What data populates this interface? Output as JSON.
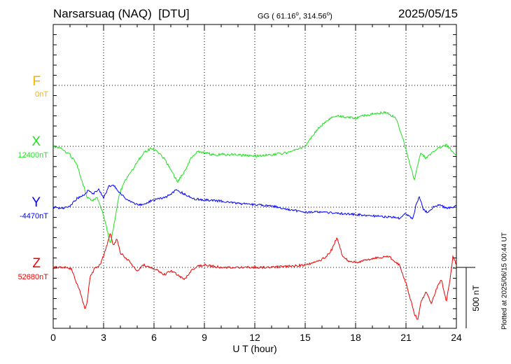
{
  "header": {
    "station": "Narsarsuaq (NAQ)",
    "source": "[DTU]",
    "coord_prefix": "GG ( 61.16",
    "coord_sep": ", 314.56",
    "coord_suffix": ")",
    "degree_mark": "o",
    "date": "2025/05/15"
  },
  "components": [
    {
      "label": "F",
      "baseline": "0nT",
      "color": "#f0b400"
    },
    {
      "label": "X",
      "baseline": "12400nT",
      "color": "#22dd22"
    },
    {
      "label": "Y",
      "baseline": "-4470nT",
      "color": "#0000ff"
    },
    {
      "label": "Z",
      "baseline": "52680nT",
      "color": "#ee0000"
    }
  ],
  "scale_label": "500 nT",
  "plotted_note": "Plotted at 2025/06/15 00:44 UT",
  "chart_data": {
    "type": "line",
    "xlabel": "U T (hour)",
    "xlim": [
      0,
      24
    ],
    "xticks": [
      "0",
      "3",
      "6",
      "9",
      "12",
      "15",
      "18",
      "21",
      "24"
    ],
    "ylabel": "",
    "scale_bar_nT": 500,
    "grid": true,
    "series": [
      {
        "name": "F",
        "x": [],
        "y": []
      },
      {
        "name": "X",
        "x": [
          0,
          0.5,
          1.0,
          1.4,
          1.8,
          2.0,
          2.3,
          2.6,
          2.9,
          3.2,
          3.4,
          3.5,
          3.7,
          3.9,
          4.2,
          4.6,
          5.0,
          5.4,
          5.8,
          6.2,
          6.6,
          7.0,
          7.4,
          7.8,
          8.2,
          8.6,
          9.0,
          9.5,
          10,
          11,
          12,
          13,
          14,
          15,
          15.6,
          16.2,
          16.8,
          17.4,
          18,
          18.6,
          19.2,
          19.8,
          20.4,
          20.8,
          21.2,
          21.5,
          21.7,
          21.9,
          22.2,
          22.6,
          23.0,
          23.4,
          23.7,
          24
        ],
        "y": [
          12400,
          12380,
          12330,
          12250,
          12080,
          11980,
          11950,
          11980,
          11880,
          11720,
          11600,
          11660,
          11820,
          11990,
          12100,
          12180,
          12270,
          12350,
          12380,
          12360,
          12300,
          12210,
          12110,
          12190,
          12300,
          12360,
          12350,
          12330,
          12335,
          12330,
          12320,
          12330,
          12350,
          12400,
          12520,
          12600,
          12650,
          12640,
          12630,
          12655,
          12670,
          12680,
          12630,
          12470,
          12270,
          12120,
          12250,
          12350,
          12300,
          12350,
          12390,
          12410,
          12370,
          12330
        ]
      },
      {
        "name": "Y",
        "x": [
          0,
          0.5,
          1.0,
          1.4,
          1.8,
          2.1,
          2.4,
          2.7,
          3.0,
          3.3,
          3.6,
          3.9,
          4.3,
          4.8,
          5.3,
          5.8,
          6.3,
          6.8,
          7.3,
          7.8,
          8.3,
          9,
          10,
          11,
          12,
          13,
          14,
          15,
          16,
          17,
          18,
          19,
          20,
          20.6,
          21.0,
          21.4,
          21.6,
          21.8,
          22.0,
          22.3,
          22.7,
          23.0,
          23.4,
          23.7,
          24
        ],
        "y": [
          -4470,
          -4480,
          -4460,
          -4400,
          -4370,
          -4330,
          -4360,
          -4320,
          -4400,
          -4300,
          -4290,
          -4340,
          -4400,
          -4440,
          -4450,
          -4420,
          -4400,
          -4380,
          -4330,
          -4360,
          -4400,
          -4410,
          -4420,
          -4440,
          -4450,
          -4460,
          -4490,
          -4510,
          -4510,
          -4520,
          -4530,
          -4540,
          -4550,
          -4560,
          -4520,
          -4570,
          -4450,
          -4380,
          -4480,
          -4520,
          -4460,
          -4450,
          -4480,
          -4470,
          -4460
        ]
      },
      {
        "name": "Z",
        "x": [
          0,
          0.6,
          1.1,
          1.3,
          1.6,
          1.9,
          2.0,
          2.2,
          2.5,
          2.8,
          3.0,
          3.2,
          3.4,
          3.6,
          3.8,
          4.0,
          4.3,
          4.6,
          5.0,
          5.4,
          5.8,
          6.2,
          6.6,
          7.0,
          7.4,
          7.8,
          8.2,
          8.6,
          9,
          10,
          11,
          12,
          13,
          14,
          15,
          15.6,
          16.2,
          16.6,
          16.9,
          17.2,
          17.6,
          18,
          18.6,
          19.2,
          20.0,
          20.6,
          21.0,
          21.2,
          21.5,
          21.7,
          21.9,
          22.2,
          22.5,
          22.8,
          23.1,
          23.4,
          23.6,
          23.8,
          24
        ],
        "y": [
          52680,
          52680,
          52670,
          52580,
          52480,
          52330,
          52380,
          52600,
          52680,
          52700,
          52780,
          52860,
          52960,
          52850,
          52920,
          52800,
          52760,
          52720,
          52650,
          52700,
          52680,
          52660,
          52620,
          52650,
          52620,
          52580,
          52650,
          52690,
          52700,
          52680,
          52680,
          52680,
          52680,
          52690,
          52700,
          52720,
          52760,
          52830,
          52930,
          52780,
          52730,
          52720,
          52740,
          52760,
          52770,
          52700,
          52550,
          52450,
          52300,
          52250,
          52400,
          52480,
          52380,
          52500,
          52580,
          52400,
          52560,
          52780,
          52700
        ]
      }
    ]
  }
}
